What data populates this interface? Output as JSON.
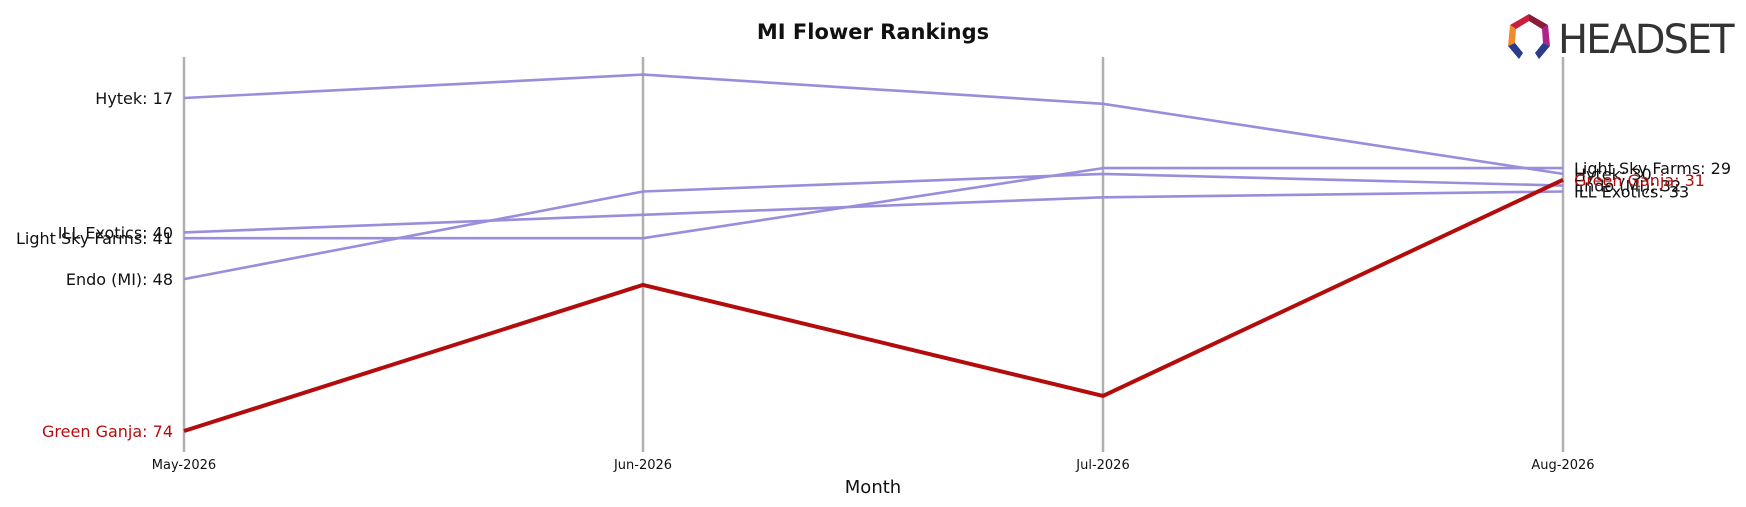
{
  "chart_data": {
    "type": "line",
    "title": "MI Flower Rankings",
    "xlabel": "Month",
    "ylabel": "",
    "categories": [
      "May-2026",
      "Jun-2026",
      "Jul-2026",
      "Aug-2026"
    ],
    "y_inverted": true,
    "ylim": [
      80,
      13
    ],
    "grid": false,
    "highlight_series": "Green Ganja",
    "colors": {
      "default": "#9b8ddb",
      "highlight": "#b30c0c",
      "axis_lines": "#b0b0b0"
    },
    "series": [
      {
        "name": "Hytek",
        "values": [
          17,
          13,
          18,
          30
        ],
        "start_label": "Hytek: 17",
        "end_label": "Hytek: 30"
      },
      {
        "name": "Light Sky Farms",
        "values": [
          41,
          41,
          29,
          29
        ],
        "start_label": "Light Sky Farms: 41",
        "end_label": "Light Sky Farms: 29"
      },
      {
        "name": "ILL Exotics",
        "values": [
          40,
          37,
          34,
          33
        ],
        "start_label": "ILL Exotics: 40",
        "end_label": "ILL Exotics: 33"
      },
      {
        "name": "Endo (MI)",
        "values": [
          48,
          33,
          30,
          32
        ],
        "start_label": "Endo (MI): 48",
        "end_label": "Endo (MI): 32"
      },
      {
        "name": "Green Ganja",
        "values": [
          74,
          49,
          68,
          31
        ],
        "start_label": "Green Ganja: 74",
        "end_label": "Green Ganja: 31"
      }
    ]
  },
  "logo": {
    "text": "HEADSET"
  }
}
